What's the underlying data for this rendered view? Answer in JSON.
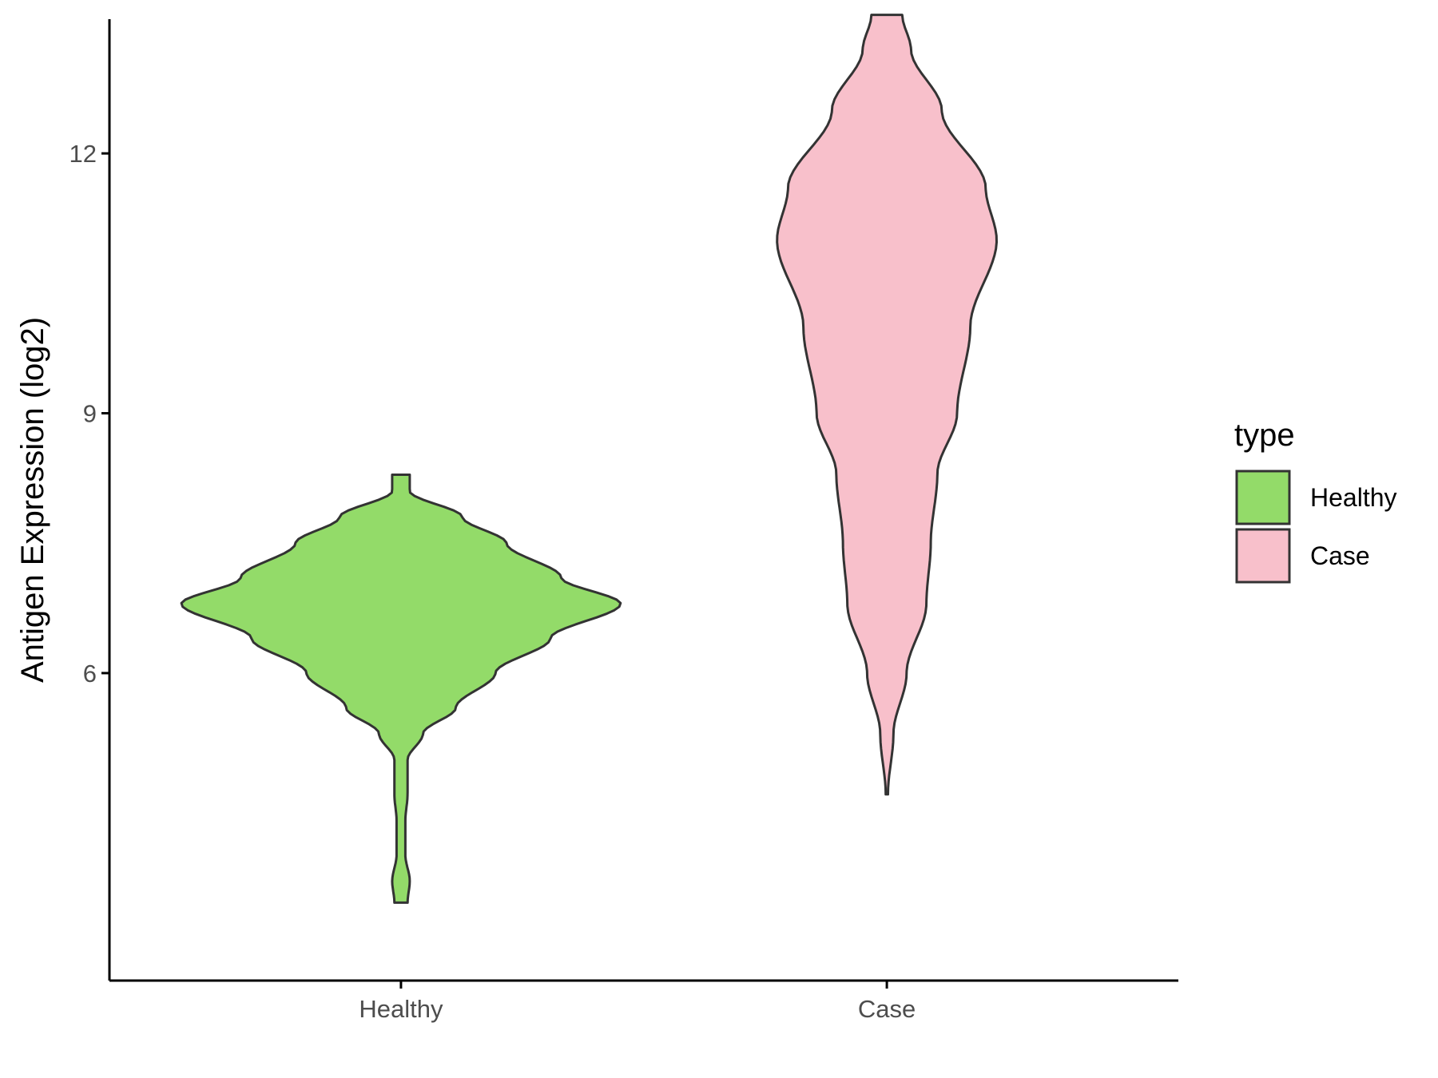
{
  "chart_data": {
    "type": "violin",
    "title": "",
    "xlabel": "",
    "ylabel": "Antigen Expression (log2)",
    "categories": [
      "Healthy",
      "Case"
    ],
    "ylim": [
      2.45,
      13.55
    ],
    "yticks": [
      6,
      9,
      12
    ],
    "grid": false,
    "legend": {
      "title": "type",
      "position": "right",
      "entries": [
        {
          "label": "Healthy",
          "color": "#93DB69"
        },
        {
          "label": "Case",
          "color": "#F8C0CB"
        }
      ]
    },
    "series": [
      {
        "category": "Healthy",
        "color": "#93DB69",
        "range": [
          3.35,
          8.29
        ],
        "density_profile": [
          [
            3.35,
            0.03
          ],
          [
            3.6,
            0.04
          ],
          [
            3.9,
            0.02
          ],
          [
            4.3,
            0.02
          ],
          [
            4.6,
            0.03
          ],
          [
            5.0,
            0.03
          ],
          [
            5.3,
            0.1
          ],
          [
            5.6,
            0.25
          ],
          [
            6.0,
            0.43
          ],
          [
            6.4,
            0.68
          ],
          [
            6.8,
            1.0
          ],
          [
            7.1,
            0.73
          ],
          [
            7.5,
            0.48
          ],
          [
            7.8,
            0.28
          ],
          [
            8.1,
            0.04
          ],
          [
            8.29,
            0.04
          ]
        ]
      },
      {
        "category": "Case",
        "color": "#F8C0CB",
        "range": [
          4.6,
          13.6
        ],
        "density_profile": [
          [
            4.6,
            0.005
          ],
          [
            5.3,
            0.03
          ],
          [
            6.0,
            0.09
          ],
          [
            6.8,
            0.18
          ],
          [
            7.5,
            0.2
          ],
          [
            8.3,
            0.23
          ],
          [
            9.0,
            0.32
          ],
          [
            10.0,
            0.38
          ],
          [
            11.0,
            0.5
          ],
          [
            11.6,
            0.45
          ],
          [
            12.5,
            0.25
          ],
          [
            13.2,
            0.11
          ],
          [
            13.6,
            0.07
          ]
        ]
      }
    ]
  }
}
